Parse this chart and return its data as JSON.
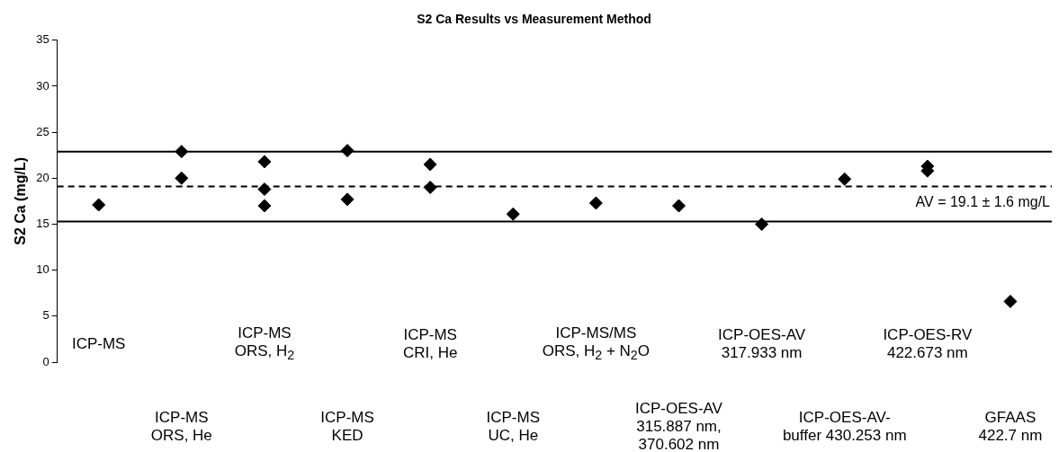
{
  "chart_data": {
    "type": "scatter",
    "title": "S2 Ca Results vs Measurement Method",
    "ylabel": "S2 Ca (mg/L)",
    "categories": [
      "ICP-MS",
      "ICP-MS\nORS, He",
      "ICP-MS\nORS, H$_{2}$",
      "ICP-MS\nKED",
      "ICP-MS\nCRI, He",
      "ICP-MS\nUC, He",
      "ICP-MS/MS\nORS, H$_{2}$ + N$_{2}$O",
      "ICP-OES-AV\n315.887 nm,\n370.602 nm",
      "ICP-OES-AV\n317.933 nm",
      "ICP-OES-AV-\nbuffer 430.253 nm",
      "ICP-OES-RV\n422.673 nm",
      "GFAAS\n422.7 nm"
    ],
    "series": [
      {
        "color": "#000000",
        "values": [
          17.1,
          22.9,
          21.8,
          23.0,
          21.5,
          16.1,
          17.3,
          17.0,
          15.0,
          19.9,
          21.3,
          6.6
        ]
      },
      {
        "color": "#000000",
        "values": [
          null,
          20.0,
          18.8,
          17.7,
          19.0,
          null,
          null,
          null,
          null,
          null,
          20.8,
          null
        ]
      },
      {
        "color": "#000000",
        "values": [
          null,
          null,
          17.0,
          null,
          null,
          null,
          null,
          null,
          null,
          null,
          null,
          null
        ]
      }
    ],
    "marker": "diamond",
    "ylim": [
      0,
      35
    ],
    "yticks": [
      0,
      5,
      10,
      15,
      20,
      25,
      30,
      35
    ],
    "grid": false,
    "legend": false,
    "ref_lines": [
      {
        "axis": "y",
        "value": 22.9,
        "color": "#000000",
        "line_style": "solid"
      },
      {
        "axis": "y",
        "value": 19.1,
        "label": "AV = 19.1 ± 1.6 mg/L",
        "color": "#000000",
        "line_style": "dashed"
      },
      {
        "axis": "y",
        "value": 15.3,
        "color": "#000000",
        "line_style": "solid"
      }
    ]
  }
}
